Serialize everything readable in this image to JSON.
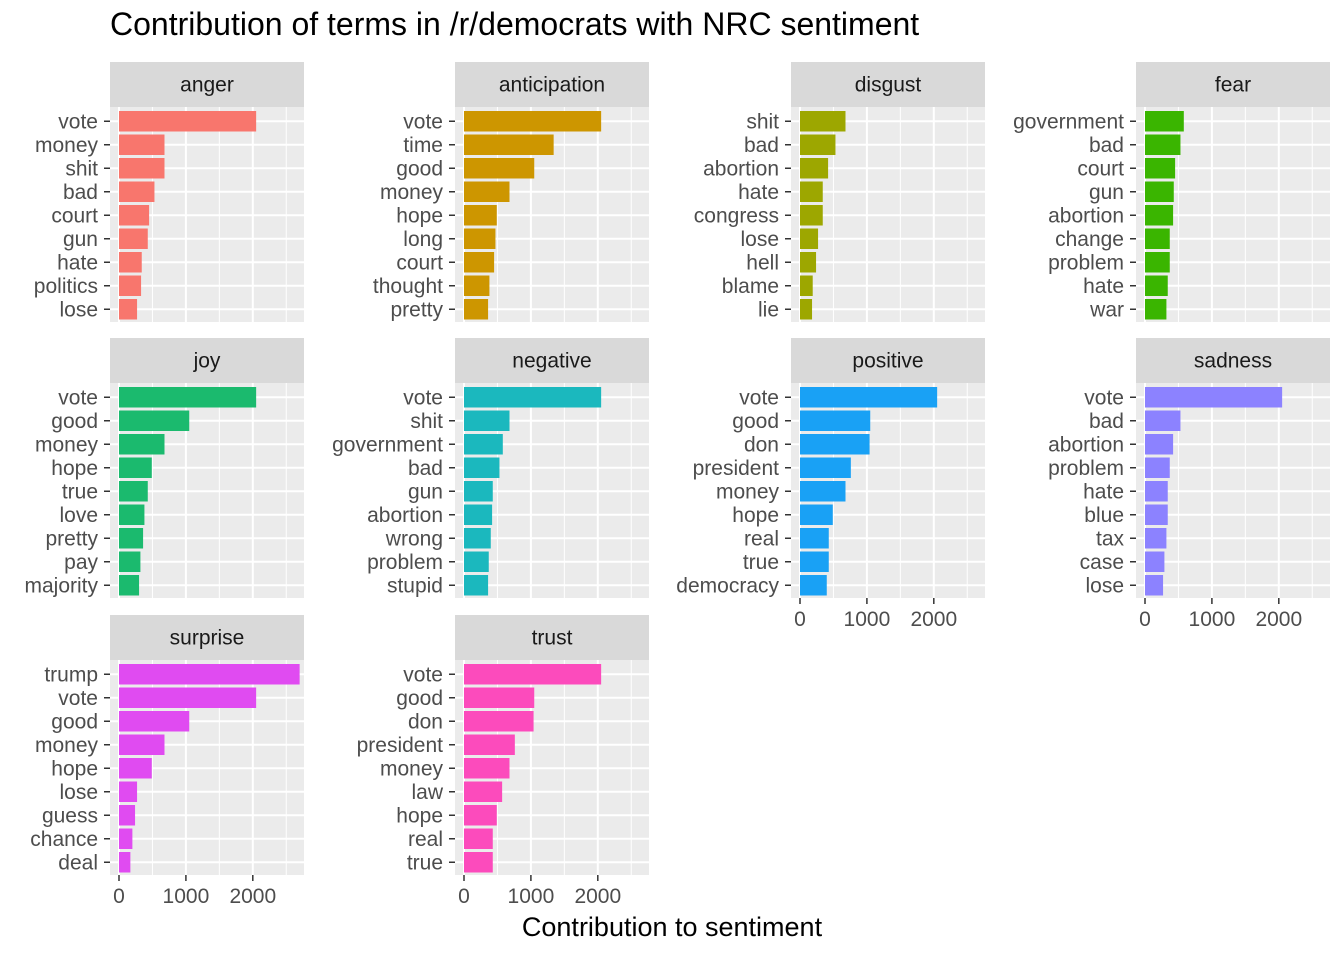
{
  "chart_data": {
    "type": "bar",
    "orientation": "horizontal",
    "title": "Contribution of terms in /r/democrats with NRC sentiment",
    "xlabel": "Contribution to sentiment",
    "ylabel": "",
    "xlim": [
      0,
      2800
    ],
    "x_ticks": [
      0,
      1000,
      2000
    ],
    "grid": true,
    "legend": "none",
    "facets": [
      {
        "name": "anger",
        "color": "#F8766D",
        "categories": [
          "vote",
          "money",
          "shit",
          "bad",
          "court",
          "gun",
          "hate",
          "politics",
          "lose"
        ],
        "values": [
          2050,
          680,
          680,
          530,
          450,
          430,
          340,
          330,
          270
        ]
      },
      {
        "name": "anticipation",
        "color": "#CD9600",
        "categories": [
          "vote",
          "time",
          "good",
          "money",
          "hope",
          "long",
          "court",
          "thought",
          "pretty"
        ],
        "values": [
          2050,
          1340,
          1050,
          680,
          490,
          470,
          450,
          380,
          360
        ]
      },
      {
        "name": "disgust",
        "color": "#9DA700",
        "categories": [
          "shit",
          "bad",
          "abortion",
          "hate",
          "congress",
          "lose",
          "hell",
          "blame",
          "lie"
        ],
        "values": [
          680,
          530,
          420,
          340,
          340,
          270,
          240,
          190,
          180
        ]
      },
      {
        "name": "fear",
        "color": "#3AB500",
        "categories": [
          "government",
          "bad",
          "court",
          "gun",
          "abortion",
          "change",
          "problem",
          "hate",
          "war"
        ],
        "values": [
          580,
          530,
          450,
          430,
          420,
          370,
          370,
          340,
          320
        ]
      },
      {
        "name": "joy",
        "color": "#1BBA6E",
        "categories": [
          "vote",
          "good",
          "money",
          "hope",
          "true",
          "love",
          "pretty",
          "pay",
          "majority"
        ],
        "values": [
          2050,
          1050,
          680,
          490,
          430,
          380,
          360,
          320,
          300
        ]
      },
      {
        "name": "negative",
        "color": "#1BB8BE",
        "categories": [
          "vote",
          "shit",
          "government",
          "bad",
          "gun",
          "abortion",
          "wrong",
          "problem",
          "stupid"
        ],
        "values": [
          2050,
          680,
          580,
          530,
          430,
          420,
          400,
          370,
          360
        ]
      },
      {
        "name": "positive",
        "color": "#19A1F5",
        "categories": [
          "vote",
          "good",
          "don",
          "president",
          "money",
          "hope",
          "real",
          "true",
          "democracy"
        ],
        "values": [
          2050,
          1050,
          1040,
          760,
          680,
          490,
          430,
          430,
          400
        ]
      },
      {
        "name": "sadness",
        "color": "#8C82FF",
        "categories": [
          "vote",
          "bad",
          "abortion",
          "problem",
          "hate",
          "blue",
          "tax",
          "case",
          "lose"
        ],
        "values": [
          2050,
          530,
          420,
          370,
          340,
          340,
          320,
          290,
          270
        ]
      },
      {
        "name": "surprise",
        "color": "#E04BF1",
        "categories": [
          "trump",
          "vote",
          "good",
          "money",
          "hope",
          "lose",
          "guess",
          "chance",
          "deal"
        ],
        "values": [
          2700,
          2050,
          1050,
          680,
          490,
          270,
          240,
          200,
          170
        ]
      },
      {
        "name": "trust",
        "color": "#FC4BBC",
        "categories": [
          "vote",
          "good",
          "don",
          "president",
          "money",
          "law",
          "hope",
          "real",
          "true"
        ],
        "values": [
          2050,
          1050,
          1040,
          760,
          680,
          570,
          490,
          430,
          430
        ]
      }
    ]
  }
}
